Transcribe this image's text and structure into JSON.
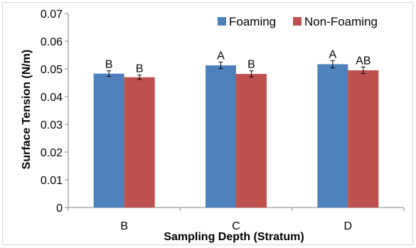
{
  "chart_data": {
    "type": "bar",
    "title": "",
    "xlabel": "Sampling Depth (Stratum)",
    "ylabel": "Surface Tension (N/m)",
    "ylim": [
      0,
      0.07
    ],
    "yticks": [
      "0",
      "0.01",
      "0.02",
      "0.03",
      "0.04",
      "0.05",
      "0.06",
      "0.07"
    ],
    "categories": [
      "B",
      "C",
      "D"
    ],
    "legend_position": "top-right",
    "grid": false,
    "series": [
      {
        "name": "Foaming",
        "color": "#4f81bd",
        "values": [
          0.0483,
          0.0513,
          0.0517
        ],
        "errors": [
          0.001,
          0.0012,
          0.0013
        ],
        "labels": [
          "B",
          "A",
          "A"
        ]
      },
      {
        "name": "Non-Foaming",
        "color": "#c0504d",
        "values": [
          0.047,
          0.0482,
          0.0495
        ],
        "errors": [
          0.0008,
          0.0011,
          0.0012
        ],
        "labels": [
          "B",
          "B",
          "AB"
        ]
      }
    ]
  }
}
